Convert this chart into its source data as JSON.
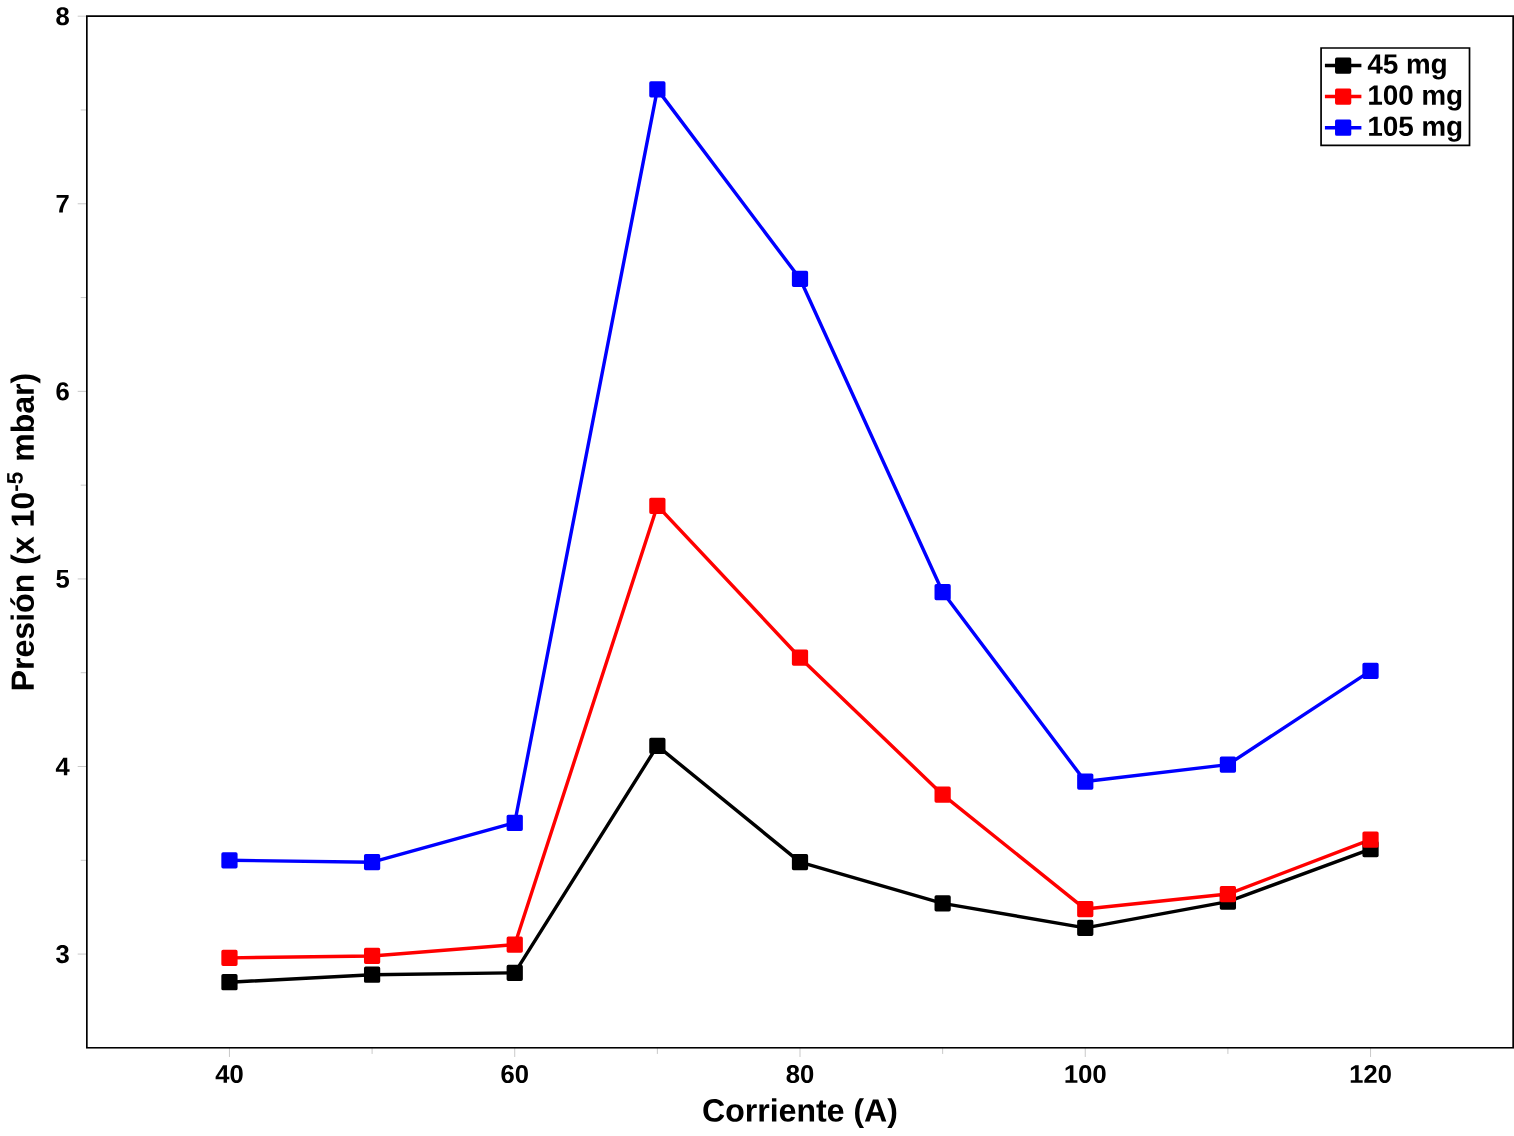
{
  "chart_data": {
    "type": "line",
    "xlabel": "Corriente (A)",
    "ylabel": "Presión (x 10$^{-5}$ mbar)",
    "x": [
      40,
      50,
      60,
      70,
      80,
      90,
      100,
      110,
      120
    ],
    "series": [
      {
        "name": "45 mg",
        "color": "#000000",
        "values": [
          2.85,
          2.89,
          2.9,
          4.11,
          3.49,
          3.27,
          3.14,
          3.28,
          3.56
        ]
      },
      {
        "name": "100 mg",
        "color": "#ff0000",
        "values": [
          2.98,
          2.99,
          3.05,
          5.39,
          4.58,
          3.85,
          3.24,
          3.32,
          3.61
        ]
      },
      {
        "name": "105 mg",
        "color": "#0000ff",
        "values": [
          3.5,
          3.49,
          3.7,
          7.61,
          6.6,
          4.93,
          3.92,
          4.01,
          4.51
        ]
      }
    ],
    "xlim": [
      30,
      130
    ],
    "ylim": [
      2.5,
      8
    ],
    "xticks": [
      40,
      60,
      80,
      100,
      120
    ],
    "yticks": [
      3,
      4,
      5,
      6,
      7,
      8
    ],
    "marker": "square",
    "line_style": "solid",
    "grid": false,
    "legend": "top right"
  }
}
